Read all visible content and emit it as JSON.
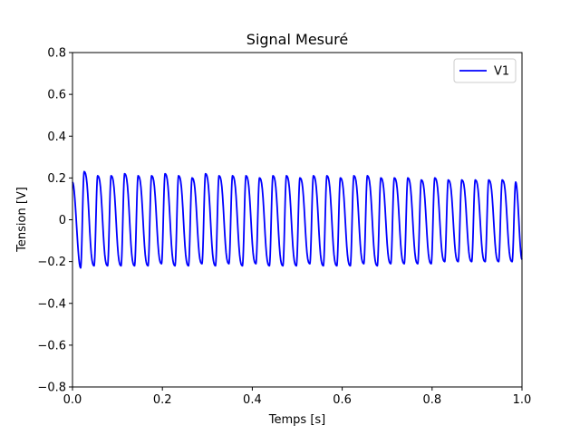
{
  "chart_data": {
    "type": "line",
    "title": "Signal Mesuré",
    "xlabel": "Temps [s]",
    "ylabel": "Tension [V]",
    "xlim": [
      0.0,
      1.0
    ],
    "ylim": [
      -0.8,
      0.8
    ],
    "x_ticks": [
      "0.0",
      "0.2",
      "0.4",
      "0.6",
      "0.8",
      "1.0"
    ],
    "y_ticks": [
      "−0.8",
      "−0.6",
      "−0.4",
      "−0.2",
      "0",
      "0.2",
      "0.4",
      "0.6",
      "0.8"
    ],
    "grid": false,
    "legend_position": "top-right",
    "series": [
      {
        "name": "V1",
        "color": "#0000ff",
        "frequency_hz": 33,
        "amplitude_v": 0.21,
        "start_value_v": 0.18,
        "end_value_v": -0.19,
        "peaks": [
          {
            "t": 0.026,
            "v": 0.23
          },
          {
            "t": 0.056,
            "v": 0.21
          },
          {
            "t": 0.086,
            "v": 0.21
          },
          {
            "t": 0.116,
            "v": 0.22
          },
          {
            "t": 0.146,
            "v": 0.21
          },
          {
            "t": 0.176,
            "v": 0.21
          },
          {
            "t": 0.206,
            "v": 0.22
          },
          {
            "t": 0.236,
            "v": 0.21
          },
          {
            "t": 0.266,
            "v": 0.2
          },
          {
            "t": 0.296,
            "v": 0.22
          },
          {
            "t": 0.326,
            "v": 0.21
          },
          {
            "t": 0.356,
            "v": 0.21
          },
          {
            "t": 0.386,
            "v": 0.21
          },
          {
            "t": 0.416,
            "v": 0.2
          },
          {
            "t": 0.446,
            "v": 0.21
          },
          {
            "t": 0.476,
            "v": 0.21
          },
          {
            "t": 0.506,
            "v": 0.2
          },
          {
            "t": 0.536,
            "v": 0.21
          },
          {
            "t": 0.566,
            "v": 0.21
          },
          {
            "t": 0.596,
            "v": 0.2
          },
          {
            "t": 0.626,
            "v": 0.21
          },
          {
            "t": 0.656,
            "v": 0.21
          },
          {
            "t": 0.686,
            "v": 0.2
          },
          {
            "t": 0.716,
            "v": 0.2
          },
          {
            "t": 0.746,
            "v": 0.2
          },
          {
            "t": 0.776,
            "v": 0.19
          },
          {
            "t": 0.806,
            "v": 0.2
          },
          {
            "t": 0.836,
            "v": 0.19
          },
          {
            "t": 0.866,
            "v": 0.19
          },
          {
            "t": 0.896,
            "v": 0.19
          },
          {
            "t": 0.926,
            "v": 0.19
          },
          {
            "t": 0.956,
            "v": 0.19
          },
          {
            "t": 0.986,
            "v": 0.18
          }
        ],
        "troughs": [
          {
            "t": 0.018,
            "v": -0.23
          },
          {
            "t": 0.048,
            "v": -0.22
          },
          {
            "t": 0.078,
            "v": -0.22
          },
          {
            "t": 0.108,
            "v": -0.22
          },
          {
            "t": 0.138,
            "v": -0.22
          },
          {
            "t": 0.168,
            "v": -0.22
          },
          {
            "t": 0.198,
            "v": -0.21
          },
          {
            "t": 0.228,
            "v": -0.22
          },
          {
            "t": 0.258,
            "v": -0.22
          },
          {
            "t": 0.288,
            "v": -0.21
          },
          {
            "t": 0.318,
            "v": -0.22
          },
          {
            "t": 0.348,
            "v": -0.21
          },
          {
            "t": 0.378,
            "v": -0.22
          },
          {
            "t": 0.408,
            "v": -0.21
          },
          {
            "t": 0.438,
            "v": -0.22
          },
          {
            "t": 0.468,
            "v": -0.22
          },
          {
            "t": 0.498,
            "v": -0.22
          },
          {
            "t": 0.528,
            "v": -0.21
          },
          {
            "t": 0.558,
            "v": -0.22
          },
          {
            "t": 0.588,
            "v": -0.22
          },
          {
            "t": 0.618,
            "v": -0.22
          },
          {
            "t": 0.648,
            "v": -0.21
          },
          {
            "t": 0.678,
            "v": -0.22
          },
          {
            "t": 0.708,
            "v": -0.21
          },
          {
            "t": 0.738,
            "v": -0.21
          },
          {
            "t": 0.768,
            "v": -0.21
          },
          {
            "t": 0.798,
            "v": -0.21
          },
          {
            "t": 0.828,
            "v": -0.2
          },
          {
            "t": 0.858,
            "v": -0.2
          },
          {
            "t": 0.888,
            "v": -0.2
          },
          {
            "t": 0.918,
            "v": -0.2
          },
          {
            "t": 0.948,
            "v": -0.2
          },
          {
            "t": 0.978,
            "v": -0.2
          }
        ]
      }
    ]
  }
}
